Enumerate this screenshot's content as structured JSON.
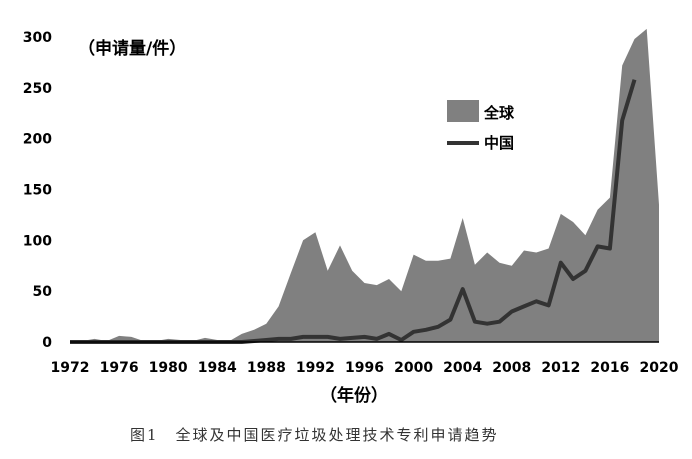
{
  "chart_data": {
    "type": "area",
    "title": "",
    "ylabel": "（申请量/件）",
    "xlabel": "（年份）",
    "caption": "图1　全球及中国医疗垃圾处理技术专利申请趋势",
    "ylim": [
      0,
      300
    ],
    "xlim": [
      1972,
      2020
    ],
    "yticks": [
      0,
      50,
      100,
      150,
      200,
      250,
      300
    ],
    "xticks": [
      1972,
      1976,
      1980,
      1984,
      1988,
      1992,
      1996,
      2000,
      2004,
      2008,
      2012,
      2016,
      2020
    ],
    "legend_position": "upper-middle-right",
    "series": [
      {
        "name": "全球",
        "type": "area",
        "color": "#808080",
        "points": [
          [
            1972,
            1
          ],
          [
            1973,
            1
          ],
          [
            1974,
            3
          ],
          [
            1975,
            1
          ],
          [
            1976,
            6
          ],
          [
            1977,
            5
          ],
          [
            1978,
            1
          ],
          [
            1979,
            1
          ],
          [
            1980,
            3
          ],
          [
            1981,
            2
          ],
          [
            1982,
            1
          ],
          [
            1983,
            4
          ],
          [
            1984,
            2
          ],
          [
            1985,
            1
          ],
          [
            1986,
            8
          ],
          [
            1987,
            12
          ],
          [
            1988,
            18
          ],
          [
            1989,
            35
          ],
          [
            1990,
            68
          ],
          [
            1991,
            100
          ],
          [
            1992,
            108
          ],
          [
            1993,
            70
          ],
          [
            1994,
            95
          ],
          [
            1995,
            70
          ],
          [
            1996,
            58
          ],
          [
            1997,
            56
          ],
          [
            1998,
            62
          ],
          [
            1999,
            50
          ],
          [
            2000,
            86
          ],
          [
            2001,
            80
          ],
          [
            2002,
            80
          ],
          [
            2003,
            82
          ],
          [
            2004,
            122
          ],
          [
            2005,
            76
          ],
          [
            2006,
            88
          ],
          [
            2007,
            78
          ],
          [
            2008,
            75
          ],
          [
            2009,
            90
          ],
          [
            2010,
            88
          ],
          [
            2011,
            92
          ],
          [
            2012,
            126
          ],
          [
            2013,
            118
          ],
          [
            2014,
            105
          ],
          [
            2015,
            130
          ],
          [
            2016,
            142
          ],
          [
            2017,
            272
          ],
          [
            2018,
            298
          ],
          [
            2019,
            308
          ],
          [
            2020,
            135
          ]
        ]
      },
      {
        "name": "中国",
        "type": "line",
        "color": "#333333",
        "points": [
          [
            1972,
            0
          ],
          [
            1986,
            0
          ],
          [
            1987,
            1
          ],
          [
            1988,
            2
          ],
          [
            1989,
            3
          ],
          [
            1990,
            3
          ],
          [
            1991,
            5
          ],
          [
            1992,
            5
          ],
          [
            1993,
            5
          ],
          [
            1994,
            3
          ],
          [
            1995,
            4
          ],
          [
            1996,
            5
          ],
          [
            1997,
            3
          ],
          [
            1998,
            8
          ],
          [
            1999,
            2
          ],
          [
            2000,
            10
          ],
          [
            2001,
            12
          ],
          [
            2002,
            15
          ],
          [
            2003,
            22
          ],
          [
            2004,
            52
          ],
          [
            2005,
            20
          ],
          [
            2006,
            18
          ],
          [
            2007,
            20
          ],
          [
            2008,
            30
          ],
          [
            2009,
            35
          ],
          [
            2010,
            40
          ],
          [
            2011,
            36
          ],
          [
            2012,
            78
          ],
          [
            2013,
            62
          ],
          [
            2014,
            70
          ],
          [
            2015,
            94
          ],
          [
            2016,
            92
          ],
          [
            2017,
            218
          ],
          [
            2018,
            258
          ]
        ]
      }
    ]
  }
}
